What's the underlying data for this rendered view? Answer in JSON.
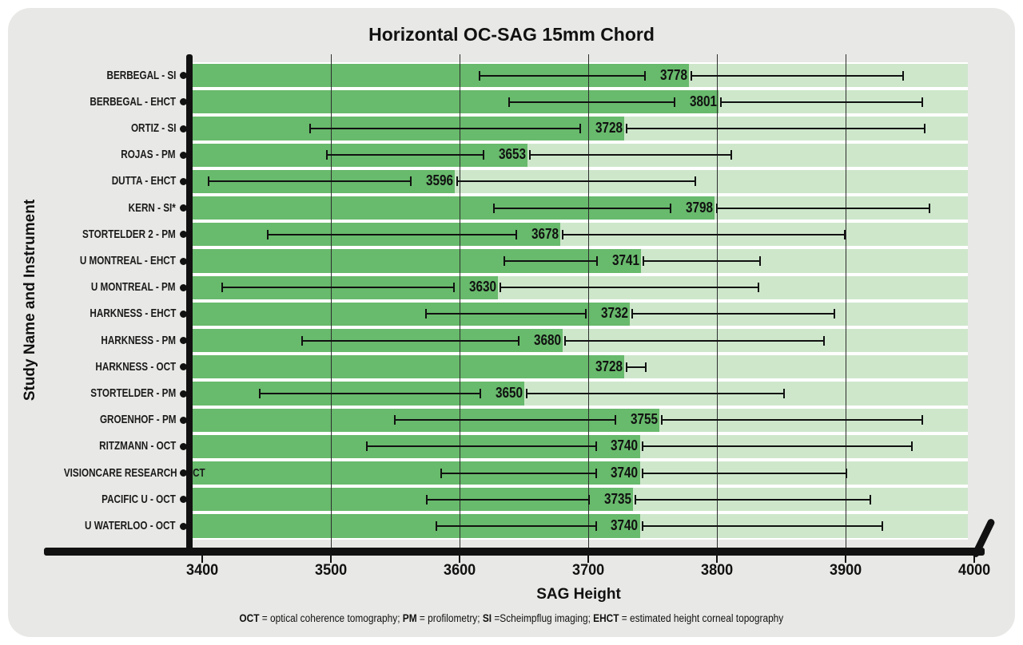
{
  "chart_data": {
    "type": "bar",
    "orientation": "horizontal",
    "title": "Horizontal OC-SAG 15mm Chord",
    "xlabel": "SAG Height",
    "ylabel": "Study Name and Instrument",
    "xlim": [
      3390,
      4005
    ],
    "xticks": [
      3400,
      3500,
      3600,
      3700,
      3800,
      3900,
      4000
    ],
    "gridlines": [
      3500,
      3600,
      3700,
      3800,
      3900
    ],
    "background_bar_end": 3995,
    "grid_on": true,
    "legend": "none",
    "colors": {
      "bar": "#68ba6c",
      "background_bar": "#cee7cb",
      "row_gap": "#ffffff",
      "card_background": "#e8e9e6",
      "axis": "#111111",
      "text": "#111111"
    },
    "rows": [
      {
        "label": "BERBEGAL - SI",
        "value": 3778,
        "ci_low": 3615,
        "ci_high": 3945
      },
      {
        "label": "BERBEGAL - EHCT",
        "value": 3801,
        "ci_low": 3638,
        "ci_high": 3960
      },
      {
        "label": "ORTIZ - SI",
        "value": 3728,
        "ci_low": 3483,
        "ci_high": 3962
      },
      {
        "label": "ROJAS - PM",
        "value": 3653,
        "ci_low": 3496,
        "ci_high": 3812
      },
      {
        "label": "DUTTA - EHCT",
        "value": 3596,
        "ci_low": 3404,
        "ci_high": 3784
      },
      {
        "label": "KERN - SI*",
        "value": 3798,
        "ci_low": 3626,
        "ci_high": 3966
      },
      {
        "label": "STORTELDER 2 - PM",
        "value": 3678,
        "ci_low": 3450,
        "ci_high": 3900
      },
      {
        "label": "U MONTREAL - EHCT",
        "value": 3741,
        "ci_low": 3634,
        "ci_high": 3834
      },
      {
        "label": "U MONTREAL - PM",
        "value": 3630,
        "ci_low": 3415,
        "ci_high": 3833
      },
      {
        "label": "HARKNESS - EHCT",
        "value": 3732,
        "ci_low": 3573,
        "ci_high": 3892
      },
      {
        "label": "HARKNESS - PM",
        "value": 3680,
        "ci_low": 3477,
        "ci_high": 3884
      },
      {
        "label": "HARKNESS - OCT",
        "value": 3728,
        "ci_low": 3711,
        "ci_high": 3745
      },
      {
        "label": "STORTELDER - PM",
        "value": 3650,
        "ci_low": 3444,
        "ci_high": 3853
      },
      {
        "label": "GROENHOF - PM",
        "value": 3755,
        "ci_low": 3549,
        "ci_high": 3960
      },
      {
        "label": "RITZMANN - OCT",
        "value": 3740,
        "ci_low": 3527,
        "ci_high": 3952
      },
      {
        "label": "VISIONCARE RESEARCH - OCT",
        "value": 3740,
        "ci_low": 3585,
        "ci_high": 3901
      },
      {
        "label": "PACIFIC U - OCT",
        "value": 3735,
        "ci_low": 3574,
        "ci_high": 3920
      },
      {
        "label": "U WATERLOO - OCT",
        "value": 3740,
        "ci_low": 3581,
        "ci_high": 3929
      }
    ]
  },
  "footnote_segments": [
    {
      "text": "OCT",
      "bold": true
    },
    {
      "text": " = optical coherence tomography; ",
      "bold": false
    },
    {
      "text": "PM",
      "bold": true
    },
    {
      "text": " = profilometry; ",
      "bold": false
    },
    {
      "text": "SI",
      "bold": true
    },
    {
      "text": " =Scheimpflug imaging; ",
      "bold": false
    },
    {
      "text": "EHCT",
      "bold": true
    },
    {
      "text": " = estimated height corneal topography",
      "bold": false
    }
  ]
}
